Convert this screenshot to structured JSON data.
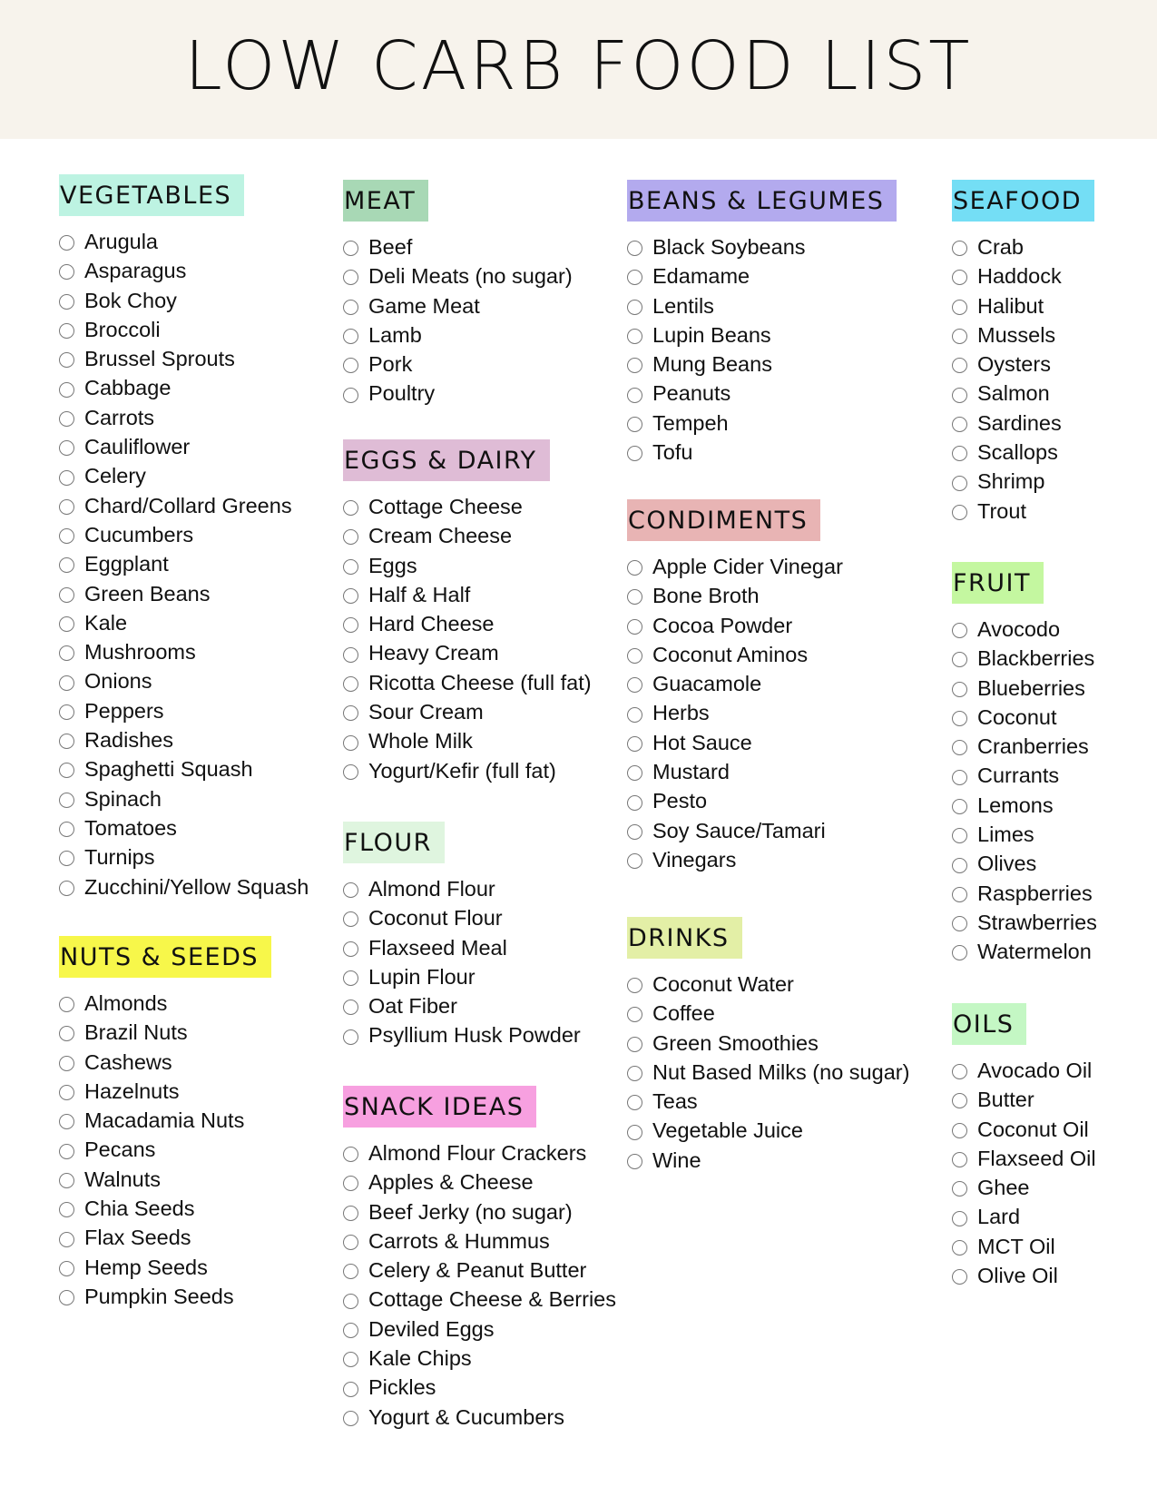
{
  "title": "LOW CARB FOOD LIST",
  "colors": {
    "header_bg": "#f7f3ec",
    "checkbox": "#777777"
  },
  "sections": [
    {
      "id": "vegetables",
      "heading": "VEGETABLES",
      "color": "#bdf3e2",
      "items": [
        "Arugula",
        "Asparagus",
        "Bok Choy",
        "Broccoli",
        "Brussel Sprouts",
        "Cabbage",
        "Carrots",
        "Cauliflower",
        "Celery",
        "Chard/Collard Greens",
        "Cucumbers",
        "Eggplant",
        "Green Beans",
        "Kale",
        "Mushrooms",
        "Onions",
        "Peppers",
        "Radishes",
        "Spaghetti Squash",
        "Spinach",
        "Tomatoes",
        "Turnips",
        "Zucchini/Yellow Squash"
      ]
    },
    {
      "id": "nuts",
      "heading": "NUTS & SEEDS",
      "color": "#f7f74a",
      "items": [
        "Almonds",
        "Brazil Nuts",
        "Cashews",
        "Hazelnuts",
        "Macadamia Nuts",
        "Pecans",
        "Walnuts",
        "Chia Seeds",
        "Flax Seeds",
        "Hemp Seeds",
        "Pumpkin Seeds"
      ]
    },
    {
      "id": "meat",
      "heading": "MEAT",
      "color": "#a8d8b5",
      "items": [
        "Beef",
        "Deli Meats (no sugar)",
        "Game Meat",
        "Lamb",
        "Pork",
        "Poultry"
      ]
    },
    {
      "id": "eggs",
      "heading": "EGGS & DAIRY",
      "color": "#dfbcd6",
      "items": [
        "Cottage Cheese",
        "Cream Cheese",
        "Eggs",
        "Half & Half",
        "Hard Cheese",
        "Heavy Cream",
        "Ricotta Cheese (full fat)",
        "Sour Cream",
        "Whole Milk",
        "Yogurt/Kefir (full fat)"
      ]
    },
    {
      "id": "flour",
      "heading": "FLOUR",
      "color": "#dff5df",
      "items": [
        "Almond Flour",
        "Coconut Flour",
        "Flaxseed Meal",
        "Lupin Flour",
        "Oat Fiber",
        "Psyllium Husk Powder"
      ]
    },
    {
      "id": "snacks",
      "heading": "SNACK IDEAS",
      "color": "#f7a0e0",
      "items": [
        "Almond Flour Crackers",
        "Apples & Cheese",
        "Beef Jerky (no sugar)",
        "Carrots & Hummus",
        "Celery & Peanut Butter",
        "Cottage Cheese & Berries",
        "Deviled Eggs",
        "Kale Chips",
        "Pickles",
        "Yogurt & Cucumbers"
      ]
    },
    {
      "id": "beans",
      "heading": "BEANS & LEGUMES",
      "color": "#b3aaee",
      "items": [
        "Black Soybeans",
        "Edamame",
        "Lentils",
        "Lupin Beans",
        "Mung Beans",
        "Peanuts",
        "Tempeh",
        "Tofu"
      ]
    },
    {
      "id": "condiments",
      "heading": "CONDIMENTS",
      "color": "#e8b4b4",
      "items": [
        "Apple Cider Vinegar",
        "Bone Broth",
        "Cocoa Powder",
        "Coconut Aminos",
        "Guacamole",
        "Herbs",
        "Hot Sauce",
        "Mustard",
        "Pesto",
        "Soy Sauce/Tamari",
        "Vinegars"
      ]
    },
    {
      "id": "drinks",
      "heading": "DRINKS",
      "color": "#e3efa6",
      "items": [
        "Coconut Water",
        "Coffee",
        "Green Smoothies",
        "Nut Based Milks (no sugar)",
        "Teas",
        "Vegetable Juice",
        "Wine"
      ]
    },
    {
      "id": "seafood",
      "heading": "SEAFOOD",
      "color": "#74def5",
      "items": [
        "Crab",
        "Haddock",
        "Halibut",
        "Mussels",
        "Oysters",
        "Salmon",
        "Sardines",
        "Scallops",
        "Shrimp",
        "Trout"
      ]
    },
    {
      "id": "fruit",
      "heading": "FRUIT",
      "color": "#c4f7a0",
      "items": [
        "Avocodo",
        "Blackberries",
        "Blueberries",
        "Coconut",
        "Cranberries",
        "Currants",
        "Lemons",
        "Limes",
        "Olives",
        "Raspberries",
        "Strawberries",
        "Watermelon"
      ]
    },
    {
      "id": "oils",
      "heading": "OILS",
      "color": "#c4f7c4",
      "items": [
        "Avocado Oil",
        "Butter",
        "Coconut Oil",
        "Flaxseed Oil",
        "Ghee",
        "Lard",
        "MCT Oil",
        "Olive Oil"
      ]
    }
  ]
}
